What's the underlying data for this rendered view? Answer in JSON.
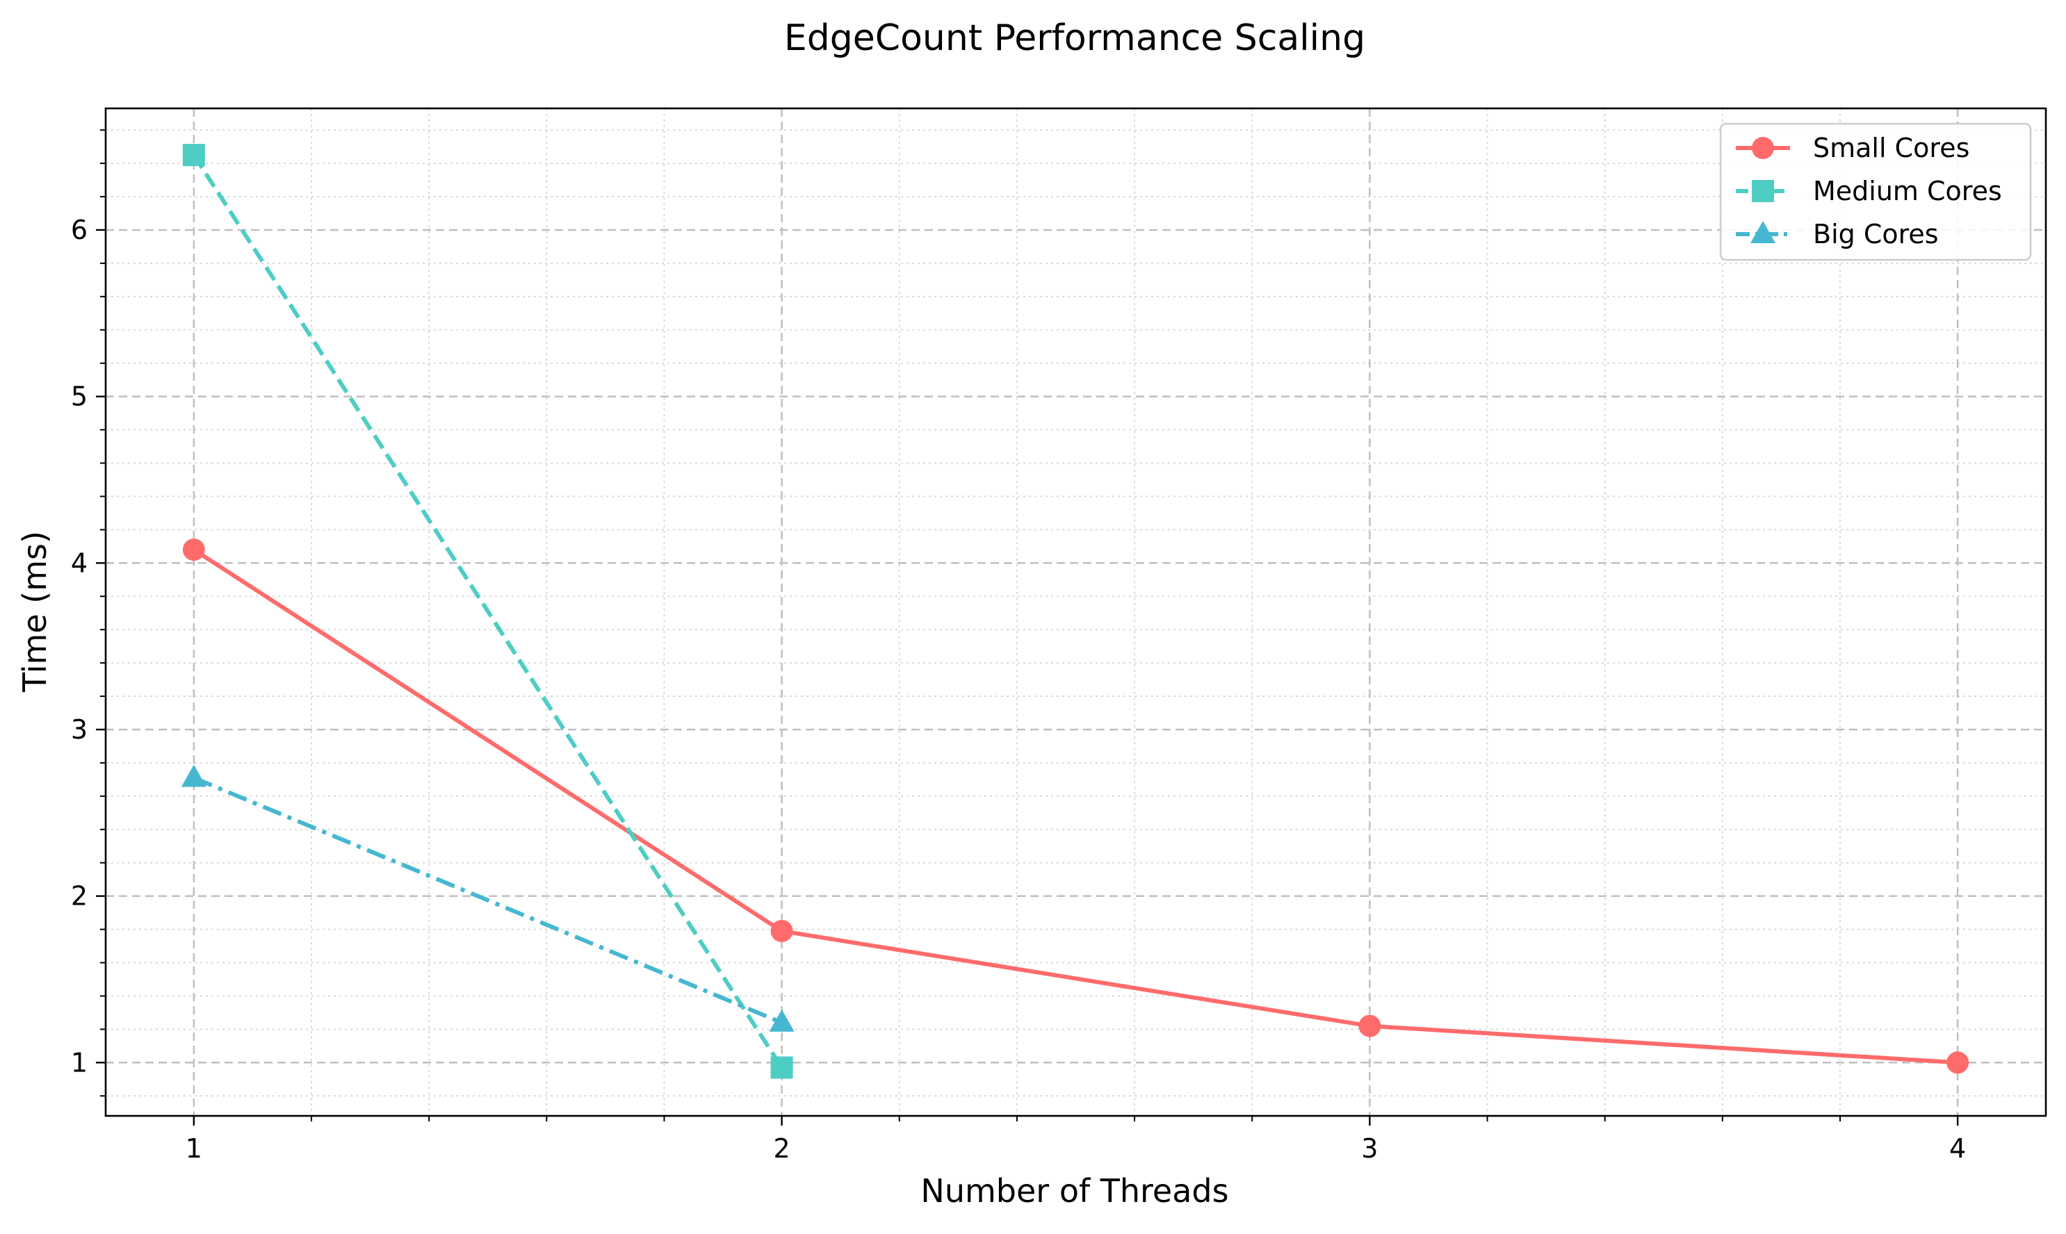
{
  "chart_data": {
    "type": "line",
    "title": "EdgeCount Performance Scaling",
    "xlabel": "Number of Threads",
    "ylabel": "Time (ms)",
    "xlim": [
      0.85,
      4.15
    ],
    "ylim": [
      0.68,
      6.73
    ],
    "xticks": [
      1,
      2,
      3,
      4
    ],
    "yticks": [
      1,
      2,
      3,
      4,
      5,
      6
    ],
    "xtick_labels": [
      "1",
      "2",
      "3",
      "4"
    ],
    "ytick_labels": [
      "1",
      "2",
      "3",
      "4",
      "5",
      "6"
    ],
    "grid": true,
    "legend_position": "top-right",
    "series": [
      {
        "name": "Small Cores",
        "x": [
          1,
          2,
          3,
          4
        ],
        "values": [
          4.08,
          1.79,
          1.22,
          1.0
        ],
        "color": "#ff6b6b",
        "line_style": "solid",
        "marker": "circle"
      },
      {
        "name": "Medium Cores",
        "x": [
          1,
          2
        ],
        "values": [
          6.45,
          0.97
        ],
        "color": "#4ecdc4",
        "line_style": "dashed",
        "marker": "square"
      },
      {
        "name": "Big Cores",
        "x": [
          1,
          2
        ],
        "values": [
          2.71,
          1.24
        ],
        "color": "#45b7d1",
        "line_style": "dashdot",
        "marker": "triangle"
      }
    ]
  }
}
